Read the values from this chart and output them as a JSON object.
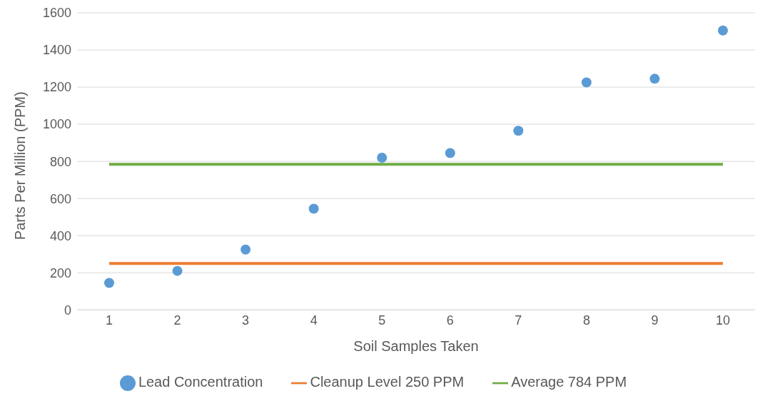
{
  "chart_data": {
    "type": "scatter",
    "xlabel": "Soil Samples Taken",
    "ylabel": "Parts Per Million (PPM)",
    "categories": [
      "1",
      "2",
      "3",
      "4",
      "5",
      "6",
      "7",
      "8",
      "9",
      "10"
    ],
    "series": [
      {
        "name": "Lead Concentration",
        "color": "#5b9bd5",
        "marker": "circle",
        "values": [
          145,
          210,
          325,
          545,
          820,
          845,
          965,
          1225,
          1245,
          1505
        ]
      },
      {
        "name": "Cleanup Level 250 PPM",
        "type": "line",
        "color": "#ed7d31",
        "marker": "none",
        "values": [
          250,
          250,
          250,
          250,
          250,
          250,
          250,
          250,
          250,
          250
        ]
      },
      {
        "name": "Average 784 PPM",
        "type": "line",
        "color": "#70ad47",
        "marker": "none",
        "values": [
          784,
          784,
          784,
          784,
          784,
          784,
          784,
          784,
          784,
          784
        ]
      }
    ],
    "ylim": [
      0,
      1600
    ],
    "yticks": [
      0,
      200,
      400,
      600,
      800,
      1000,
      1200,
      1400,
      1600
    ],
    "grid": "y",
    "legend": "bottom"
  }
}
